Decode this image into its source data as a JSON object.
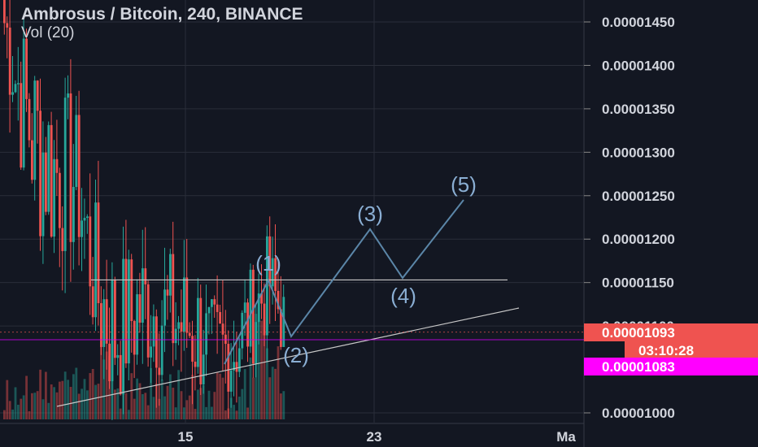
{
  "legend": {
    "title": "Ambrosus / Bitcoin, 240, BINANCE",
    "volume": "Vol (20)"
  },
  "price_axis": {
    "labels": [
      "0.00001450",
      "0.00001400",
      "0.00001350",
      "0.00001300",
      "0.00001250",
      "0.00001200",
      "0.00001150",
      "0.00001100",
      "0.00001000"
    ],
    "last_price": "0.00001093",
    "countdown": "03:10:28",
    "marker_price": "0.00001083"
  },
  "time_axis": {
    "labels": [
      "15",
      "23",
      "Ma"
    ]
  },
  "colors": {
    "background": "#131722",
    "up": "#26a69a",
    "down": "#ef5350",
    "last_price_tag": "#ef5350",
    "marker_tag": "#ff00ff",
    "wave_label": "#8aaed3",
    "wave_line": "#5b86a8",
    "grid": "#2a2e39"
  },
  "chart_data": {
    "type": "candlestick",
    "pair": "Ambrosus / Bitcoin",
    "interval": "240",
    "exchange": "BINANCE",
    "ylim": [
      9.95e-06,
      1.47e-05
    ],
    "grid": true,
    "segments": [
      {
        "x": [
          0,
          4
        ],
        "price": [
          1.45e-05,
          1.39e-05
        ],
        "noise": 7e-07
      },
      {
        "x": [
          4,
          10
        ],
        "price": [
          1.39e-05,
          1.32e-05
        ],
        "noise": 1e-06
      },
      {
        "x": [
          10,
          18
        ],
        "price": [
          1.32e-05,
          1.28e-05
        ],
        "noise": 1.2e-06
      },
      {
        "x": [
          18,
          26
        ],
        "price": [
          1.28e-05,
          1.27e-05
        ],
        "noise": 1e-06
      },
      {
        "x": [
          26,
          33
        ],
        "price": [
          1.27e-05,
          1.145e-05
        ],
        "noise": 8e-07
      },
      {
        "x": [
          33,
          40
        ],
        "price": [
          1.145e-05,
          1.09e-05
        ],
        "noise": 1e-06
      },
      {
        "x": [
          40,
          50
        ],
        "price": [
          1.09e-05,
          1.125e-05
        ],
        "noise": 9e-07
      },
      {
        "x": [
          50,
          60
        ],
        "price": [
          1.125e-05,
          1.11e-05
        ],
        "noise": 8e-07
      },
      {
        "x": [
          60,
          72
        ],
        "price": [
          1.11e-05,
          1.09e-05
        ],
        "noise": 8e-07
      },
      {
        "x": [
          72,
          82
        ],
        "price": [
          1.09e-05,
          1.07e-05
        ],
        "noise": 5e-07
      },
      {
        "x": [
          82,
          96
        ],
        "price": [
          1.07e-05,
          1.15e-05
        ],
        "noise": 6e-07
      },
      {
        "x": [
          96,
          102
        ],
        "price": [
          1.15e-05,
          1.095e-05
        ],
        "noise": 5e-07
      }
    ],
    "resistance_price": 1.153e-05,
    "last_price_value": 1.093e-05,
    "marker_price_value": 1.083e-05,
    "wave_labels": [
      "(1)",
      "(2)",
      "(3)",
      "(4)",
      "(5)"
    ],
    "projection": [
      {
        "label": "(1)",
        "price": 1.153e-05
      },
      {
        "label": "(2)",
        "price": 1.09e-05
      },
      {
        "label": "(3)",
        "price": 1.212e-05
      },
      {
        "label": "(4)",
        "price": 1.157e-05
      },
      {
        "label": "(5)",
        "price": 1.245e-05
      }
    ]
  }
}
